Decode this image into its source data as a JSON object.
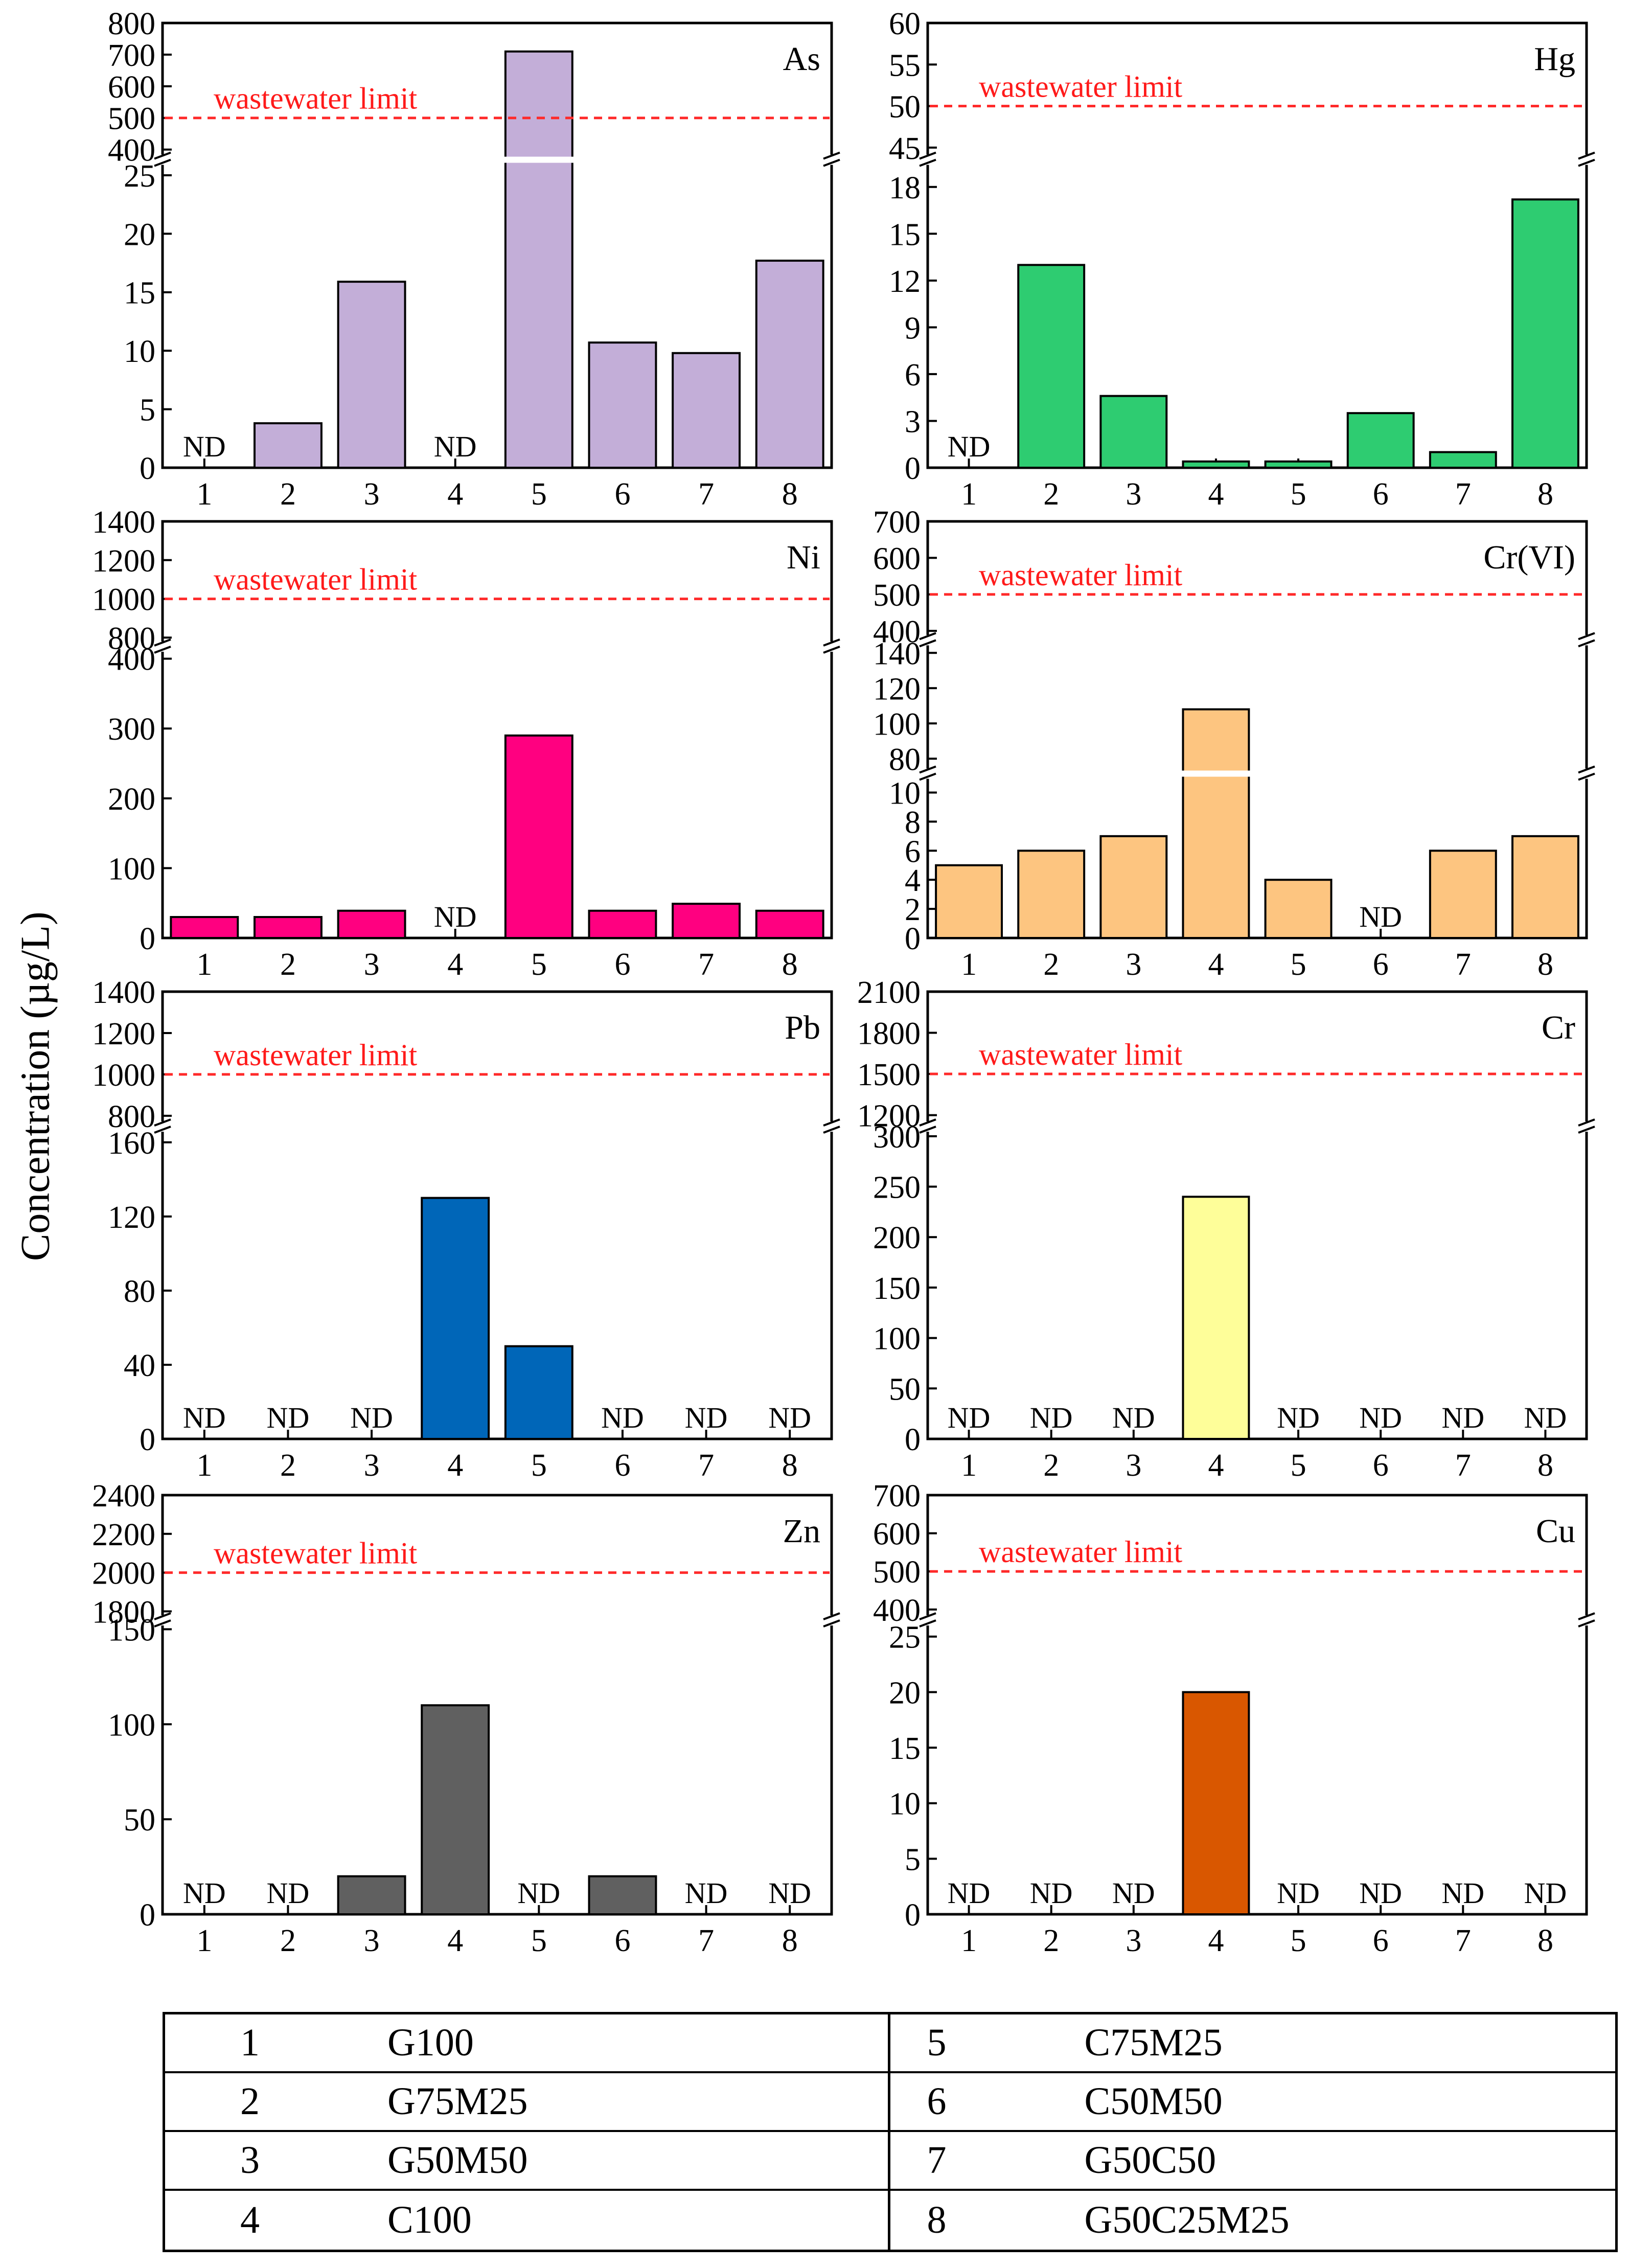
{
  "y_axis_title": "Concentration (µg/L)",
  "limit_label": "wastewater limit",
  "nd_label": "ND",
  "legend": [
    {
      "num": "1",
      "name": "G100"
    },
    {
      "num": "2",
      "name": "G75M25"
    },
    {
      "num": "3",
      "name": "G50M50"
    },
    {
      "num": "4",
      "name": "C100"
    },
    {
      "num": "5",
      "name": "C75M25"
    },
    {
      "num": "6",
      "name": "C50M50"
    },
    {
      "num": "7",
      "name": "G50C50"
    },
    {
      "num": "8",
      "name": "G50C25M25"
    }
  ],
  "chart_data": [
    {
      "type": "bar",
      "title": "As",
      "color": "#c3aed8",
      "categories": [
        "1",
        "2",
        "3",
        "4",
        "5",
        "6",
        "7",
        "8"
      ],
      "values": [
        null,
        3.8,
        15.9,
        null,
        710,
        10.7,
        9.8,
        17.7
      ],
      "limit": 500,
      "upper": {
        "range": [
          380,
          800
        ],
        "ticks": [
          "400",
          "500",
          "600",
          "700",
          "800"
        ]
      },
      "mid": null,
      "lower": {
        "range": [
          0,
          26
        ],
        "ticks": [
          "0",
          "5",
          "10",
          "15",
          "20",
          "25"
        ]
      }
    },
    {
      "type": "bar",
      "title": "Hg",
      "color": "#2ecc71",
      "categories": [
        "1",
        "2",
        "3",
        "4",
        "5",
        "6",
        "7",
        "8"
      ],
      "values": [
        null,
        13,
        4.6,
        0.4,
        0.4,
        3.5,
        1.0,
        17.2
      ],
      "limit": 50,
      "upper": {
        "range": [
          44,
          60
        ],
        "ticks": [
          "45",
          "50",
          "55",
          "60"
        ]
      },
      "mid": null,
      "lower": {
        "range": [
          0,
          19.5
        ],
        "ticks": [
          "0",
          "3",
          "6",
          "9",
          "12",
          "15",
          "18"
        ]
      }
    },
    {
      "type": "bar",
      "title": "Ni",
      "color": "#ff0080",
      "categories": [
        "1",
        "2",
        "3",
        "4",
        "5",
        "6",
        "7",
        "8"
      ],
      "values": [
        30,
        30,
        39,
        null,
        290,
        39,
        49,
        39
      ],
      "limit": 1000,
      "upper": {
        "range": [
          780,
          1400
        ],
        "ticks": [
          "800",
          "1000",
          "1200",
          "1400"
        ]
      },
      "mid": null,
      "lower": {
        "range": [
          0,
          410
        ],
        "ticks": [
          "0",
          "100",
          "200",
          "300",
          "400"
        ]
      }
    },
    {
      "type": "bar",
      "title": "Cr(VI)",
      "color": "#fdc580",
      "categories": [
        "1",
        "2",
        "3",
        "4",
        "5",
        "6",
        "7",
        "8"
      ],
      "values": [
        5,
        6,
        7,
        108,
        4,
        null,
        6,
        7
      ],
      "limit": 500,
      "upper": {
        "range": [
          385,
          700
        ],
        "ticks": [
          "400",
          "500",
          "600",
          "700"
        ]
      },
      "mid": {
        "range": [
          74,
          145
        ],
        "ticks": [
          "80",
          "100",
          "120",
          "140"
        ]
      },
      "lower": {
        "range": [
          0,
          11
        ],
        "ticks": [
          "0",
          "2",
          "4",
          "6",
          "8",
          "10"
        ]
      }
    },
    {
      "type": "bar",
      "title": "Pb",
      "color": "#0066b8",
      "categories": [
        "1",
        "2",
        "3",
        "4",
        "5",
        "6",
        "7",
        "8"
      ],
      "values": [
        null,
        null,
        null,
        130,
        50,
        null,
        null,
        null
      ],
      "limit": 1000,
      "upper": {
        "range": [
          770,
          1400
        ],
        "ticks": [
          "800",
          "1000",
          "1200",
          "1400"
        ]
      },
      "mid": null,
      "lower": {
        "range": [
          0,
          166
        ],
        "ticks": [
          "0",
          "40",
          "80",
          "120",
          "160"
        ]
      }
    },
    {
      "type": "bar",
      "title": "Cr",
      "color": "#fefe99",
      "categories": [
        "1",
        "2",
        "3",
        "4",
        "5",
        "6",
        "7",
        "8"
      ],
      "values": [
        null,
        null,
        null,
        240,
        null,
        null,
        null,
        null
      ],
      "limit": 1500,
      "upper": {
        "range": [
          1150,
          2100
        ],
        "ticks": [
          "1200",
          "1500",
          "1800",
          "2100"
        ]
      },
      "mid": null,
      "lower": {
        "range": [
          0,
          305
        ],
        "ticks": [
          "0",
          "50",
          "100",
          "150",
          "200",
          "250",
          "300"
        ]
      }
    },
    {
      "type": "bar",
      "title": "Zn",
      "color": "#606060",
      "categories": [
        "1",
        "2",
        "3",
        "4",
        "5",
        "6",
        "7",
        "8"
      ],
      "values": [
        null,
        null,
        20,
        110,
        null,
        20,
        null,
        null
      ],
      "limit": 2000,
      "upper": {
        "range": [
          1780,
          2400
        ],
        "ticks": [
          "1800",
          "2000",
          "2200",
          "2400"
        ]
      },
      "mid": null,
      "lower": {
        "range": [
          0,
          152
        ],
        "ticks": [
          "0",
          "50",
          "100",
          "150"
        ]
      }
    },
    {
      "type": "bar",
      "title": "Cu",
      "color": "#d95700",
      "categories": [
        "1",
        "2",
        "3",
        "4",
        "5",
        "6",
        "7",
        "8"
      ],
      "values": [
        null,
        null,
        null,
        20,
        null,
        null,
        null,
        null
      ],
      "limit": 500,
      "upper": {
        "range": [
          385,
          700
        ],
        "ticks": [
          "400",
          "500",
          "600",
          "700"
        ]
      },
      "mid": null,
      "lower": {
        "range": [
          0,
          26
        ],
        "ticks": [
          "0",
          "5",
          "10",
          "15",
          "20",
          "25"
        ]
      }
    }
  ]
}
